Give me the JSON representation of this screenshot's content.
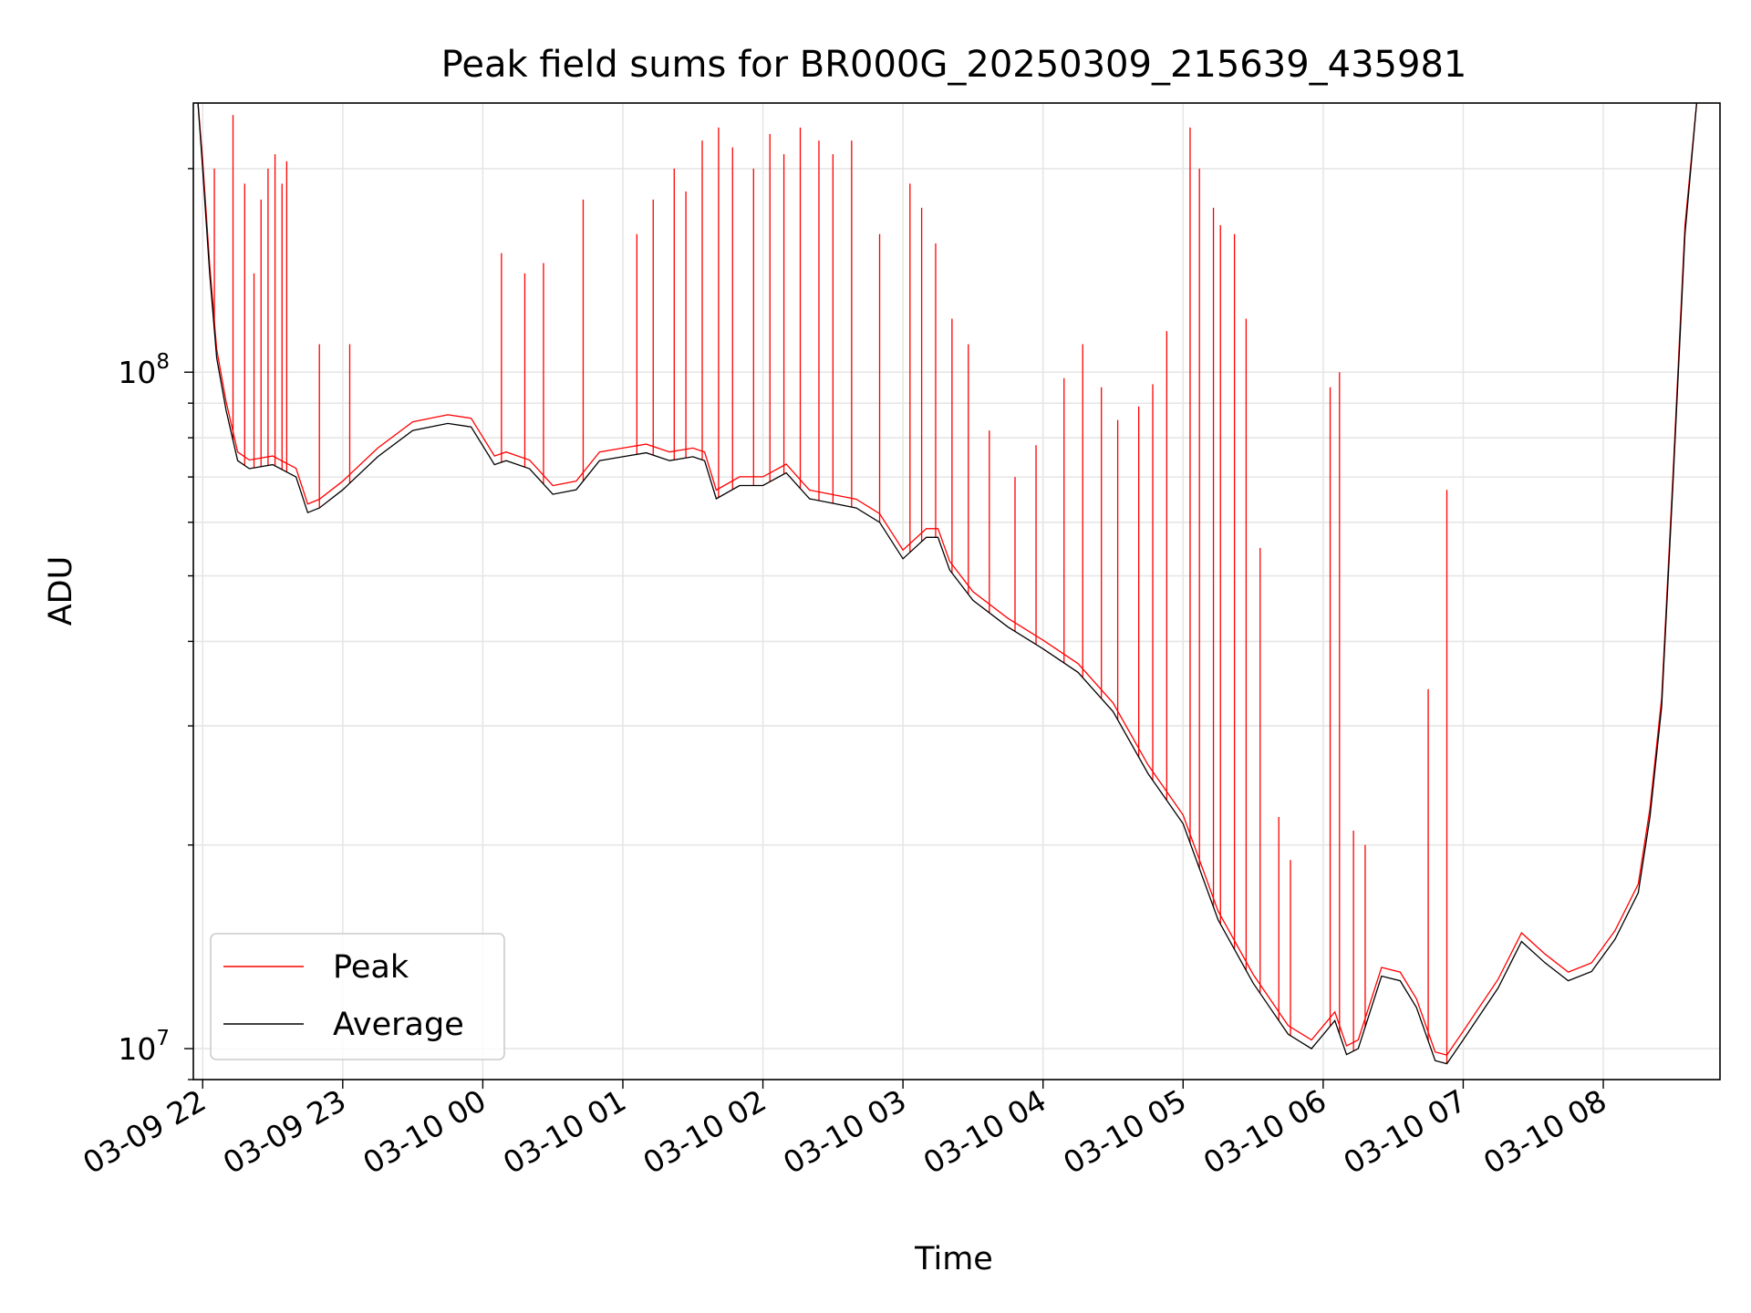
{
  "chart_data": {
    "type": "line",
    "title": "Peak field sums for BR000G_20250309_215639_435981",
    "xlabel": "Time",
    "ylabel": "ADU",
    "yscale": "log",
    "ylim": [
      9000000,
      250000000
    ],
    "xlim": [
      "2025-03-09 21:56",
      "2025-03-10 08:50"
    ],
    "grid": true,
    "legend_position": "lower-left",
    "x_tick_labels": [
      "03-09 22",
      "03-09 23",
      "03-10 00",
      "03-10 01",
      "03-10 02",
      "03-10 03",
      "03-10 04",
      "03-10 05",
      "03-10 06",
      "03-10 07",
      "03-10 08"
    ],
    "x_ticks": [
      "2025-03-09 22:00",
      "2025-03-09 23:00",
      "2025-03-10 00:00",
      "2025-03-10 01:00",
      "2025-03-10 02:00",
      "2025-03-10 03:00",
      "2025-03-10 04:00",
      "2025-03-10 05:00",
      "2025-03-10 06:00",
      "2025-03-10 07:00",
      "2025-03-10 08:00"
    ],
    "y_ticks": [
      10000000,
      100000000
    ],
    "y_tick_labels": [
      {
        "base": "10",
        "exp": "7"
      },
      {
        "base": "10",
        "exp": "8"
      }
    ],
    "series": [
      {
        "name": "Average",
        "color": "#000000",
        "x": [
          "2025-03-09 21:58",
          "2025-03-09 22:00",
          "2025-03-09 22:03",
          "2025-03-09 22:06",
          "2025-03-09 22:10",
          "2025-03-09 22:15",
          "2025-03-09 22:20",
          "2025-03-09 22:30",
          "2025-03-09 22:40",
          "2025-03-09 22:45",
          "2025-03-09 22:50",
          "2025-03-09 23:00",
          "2025-03-09 23:15",
          "2025-03-09 23:30",
          "2025-03-09 23:45",
          "2025-03-09 23:55",
          "2025-03-10 00:05",
          "2025-03-10 00:10",
          "2025-03-10 00:20",
          "2025-03-10 00:30",
          "2025-03-10 00:40",
          "2025-03-10 00:50",
          "2025-03-10 01:00",
          "2025-03-10 01:10",
          "2025-03-10 01:20",
          "2025-03-10 01:30",
          "2025-03-10 01:35",
          "2025-03-10 01:40",
          "2025-03-10 01:50",
          "2025-03-10 02:00",
          "2025-03-10 02:10",
          "2025-03-10 02:20",
          "2025-03-10 02:30",
          "2025-03-10 02:40",
          "2025-03-10 02:50",
          "2025-03-10 03:00",
          "2025-03-10 03:10",
          "2025-03-10 03:15",
          "2025-03-10 03:20",
          "2025-03-10 03:30",
          "2025-03-10 03:45",
          "2025-03-10 04:00",
          "2025-03-10 04:15",
          "2025-03-10 04:30",
          "2025-03-10 04:45",
          "2025-03-10 05:00",
          "2025-03-10 05:15",
          "2025-03-10 05:30",
          "2025-03-10 05:45",
          "2025-03-10 05:55",
          "2025-03-10 06:05",
          "2025-03-10 06:10",
          "2025-03-10 06:15",
          "2025-03-10 06:25",
          "2025-03-10 06:33",
          "2025-03-10 06:40",
          "2025-03-10 06:48",
          "2025-03-10 06:53",
          "2025-03-10 07:00",
          "2025-03-10 07:15",
          "2025-03-10 07:25",
          "2025-03-10 07:35",
          "2025-03-10 07:45",
          "2025-03-10 07:55",
          "2025-03-10 08:05",
          "2025-03-10 08:15",
          "2025-03-10 08:20",
          "2025-03-10 08:25",
          "2025-03-10 08:30",
          "2025-03-10 08:35",
          "2025-03-10 08:40"
        ],
        "values": [
          250000000,
          200000000,
          140000000,
          105000000,
          88000000,
          74000000,
          72000000,
          73000000,
          70000000,
          62000000,
          63000000,
          67000000,
          75000000,
          82000000,
          84000000,
          83000000,
          73000000,
          74000000,
          72000000,
          66000000,
          67000000,
          74000000,
          75000000,
          76000000,
          74000000,
          75000000,
          74000000,
          65000000,
          68000000,
          68000000,
          71000000,
          65000000,
          64000000,
          63000000,
          60000000,
          53000000,
          57000000,
          57000000,
          51000000,
          46000000,
          42000000,
          39000000,
          36000000,
          31500000,
          25500000,
          21500000,
          15500000,
          12500000,
          10500000,
          10000000,
          11000000,
          9800000,
          10000000,
          12800000,
          12600000,
          11500000,
          9600000,
          9500000,
          10300000,
          12300000,
          14400000,
          13400000,
          12600000,
          13000000,
          14500000,
          17000000,
          22000000,
          32000000,
          70000000,
          160000000,
          250000000
        ]
      },
      {
        "name": "Peak",
        "color": "#ff0000",
        "spikes": [
          {
            "x": "2025-03-09 22:05",
            "y": 200000000
          },
          {
            "x": "2025-03-09 22:13",
            "y": 240000000
          },
          {
            "x": "2025-03-09 22:18",
            "y": 190000000
          },
          {
            "x": "2025-03-09 22:22",
            "y": 140000000
          },
          {
            "x": "2025-03-09 22:25",
            "y": 180000000
          },
          {
            "x": "2025-03-09 22:28",
            "y": 200000000
          },
          {
            "x": "2025-03-09 22:31",
            "y": 210000000
          },
          {
            "x": "2025-03-09 22:34",
            "y": 190000000
          },
          {
            "x": "2025-03-09 22:36",
            "y": 205000000
          },
          {
            "x": "2025-03-09 22:50",
            "y": 110000000
          },
          {
            "x": "2025-03-09 23:03",
            "y": 110000000
          },
          {
            "x": "2025-03-10 00:08",
            "y": 150000000
          },
          {
            "x": "2025-03-10 00:18",
            "y": 140000000
          },
          {
            "x": "2025-03-10 00:26",
            "y": 145000000
          },
          {
            "x": "2025-03-10 00:43",
            "y": 180000000
          },
          {
            "x": "2025-03-10 01:06",
            "y": 160000000
          },
          {
            "x": "2025-03-10 01:13",
            "y": 180000000
          },
          {
            "x": "2025-03-10 01:22",
            "y": 200000000
          },
          {
            "x": "2025-03-10 01:27",
            "y": 185000000
          },
          {
            "x": "2025-03-10 01:34",
            "y": 220000000
          },
          {
            "x": "2025-03-10 01:41",
            "y": 230000000
          },
          {
            "x": "2025-03-10 01:47",
            "y": 215000000
          },
          {
            "x": "2025-03-10 01:56",
            "y": 200000000
          },
          {
            "x": "2025-03-10 02:03",
            "y": 225000000
          },
          {
            "x": "2025-03-10 02:09",
            "y": 210000000
          },
          {
            "x": "2025-03-10 02:16",
            "y": 230000000
          },
          {
            "x": "2025-03-10 02:24",
            "y": 220000000
          },
          {
            "x": "2025-03-10 02:30",
            "y": 210000000
          },
          {
            "x": "2025-03-10 02:38",
            "y": 220000000
          },
          {
            "x": "2025-03-10 02:50",
            "y": 160000000
          },
          {
            "x": "2025-03-10 03:03",
            "y": 190000000
          },
          {
            "x": "2025-03-10 03:08",
            "y": 175000000
          },
          {
            "x": "2025-03-10 03:14",
            "y": 155000000
          },
          {
            "x": "2025-03-10 03:21",
            "y": 120000000
          },
          {
            "x": "2025-03-10 03:28",
            "y": 110000000
          },
          {
            "x": "2025-03-10 03:37",
            "y": 82000000
          },
          {
            "x": "2025-03-10 03:48",
            "y": 70000000
          },
          {
            "x": "2025-03-10 03:57",
            "y": 78000000
          },
          {
            "x": "2025-03-10 04:09",
            "y": 98000000
          },
          {
            "x": "2025-03-10 04:17",
            "y": 110000000
          },
          {
            "x": "2025-03-10 04:25",
            "y": 95000000
          },
          {
            "x": "2025-03-10 04:32",
            "y": 85000000
          },
          {
            "x": "2025-03-10 04:41",
            "y": 89000000
          },
          {
            "x": "2025-03-10 04:47",
            "y": 96000000
          },
          {
            "x": "2025-03-10 04:53",
            "y": 115000000
          },
          {
            "x": "2025-03-10 05:03",
            "y": 230000000
          },
          {
            "x": "2025-03-10 05:07",
            "y": 200000000
          },
          {
            "x": "2025-03-10 05:13",
            "y": 175000000
          },
          {
            "x": "2025-03-10 05:16",
            "y": 165000000
          },
          {
            "x": "2025-03-10 05:22",
            "y": 160000000
          },
          {
            "x": "2025-03-10 05:27",
            "y": 120000000
          },
          {
            "x": "2025-03-10 05:33",
            "y": 55000000
          },
          {
            "x": "2025-03-10 05:41",
            "y": 22000000
          },
          {
            "x": "2025-03-10 05:46",
            "y": 19000000
          },
          {
            "x": "2025-03-10 06:03",
            "y": 95000000
          },
          {
            "x": "2025-03-10 06:07",
            "y": 100000000
          },
          {
            "x": "2025-03-10 06:13",
            "y": 21000000
          },
          {
            "x": "2025-03-10 06:18",
            "y": 20000000
          },
          {
            "x": "2025-03-10 06:45",
            "y": 34000000
          },
          {
            "x": "2025-03-10 06:53",
            "y": 67000000
          }
        ]
      }
    ]
  }
}
